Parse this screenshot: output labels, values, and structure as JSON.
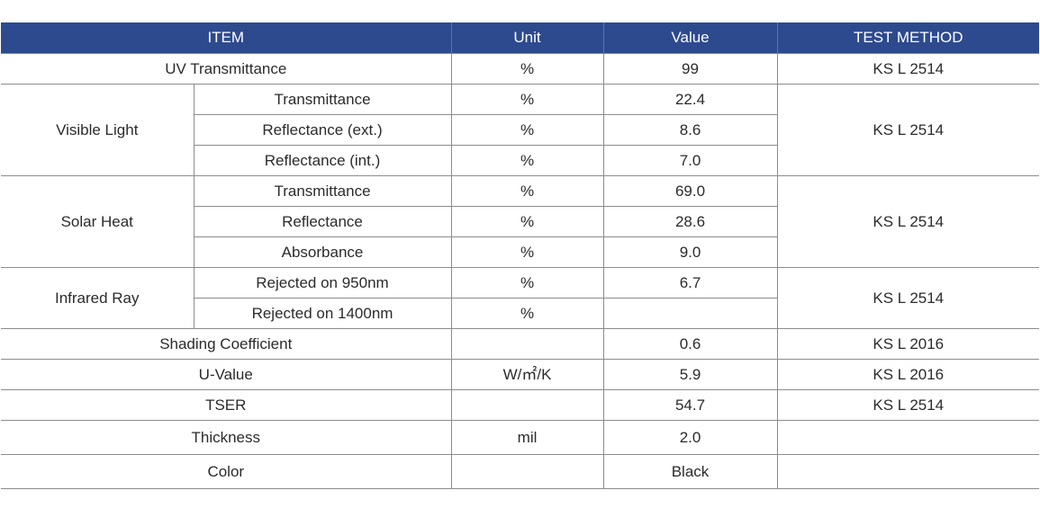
{
  "headers": {
    "item": "ITEM",
    "unit": "Unit",
    "value": "Value",
    "method": "TEST METHOD"
  },
  "uv": {
    "item": "UV Transmittance",
    "unit": "%",
    "value": "99",
    "method": "KS L 2514"
  },
  "visible_light": {
    "label": "Visible Light",
    "method": "KS L 2514",
    "rows": [
      {
        "sub": "Transmittance",
        "unit": "%",
        "value": "22.4"
      },
      {
        "sub": "Reflectance (ext.)",
        "unit": "%",
        "value": "8.6"
      },
      {
        "sub": "Reflectance (int.)",
        "unit": "%",
        "value": "7.0"
      }
    ]
  },
  "solar_heat": {
    "label": "Solar Heat",
    "method": "KS L 2514",
    "rows": [
      {
        "sub": "Transmittance",
        "unit": "%",
        "value": "69.0"
      },
      {
        "sub": "Reflectance",
        "unit": "%",
        "value": "28.6"
      },
      {
        "sub": "Absorbance",
        "unit": "%",
        "value": "9.0"
      }
    ]
  },
  "infrared": {
    "label": "Infrared Ray",
    "method": "KS L 2514",
    "rows": [
      {
        "sub": "Rejected on 950nm",
        "unit": "%",
        "value": "6.7"
      },
      {
        "sub": "Rejected on 1400nm",
        "unit": "%",
        "value": ""
      }
    ]
  },
  "shading": {
    "item": "Shading Coefficient",
    "unit": "",
    "value": "0.6",
    "method": "KS L 2016"
  },
  "u_value": {
    "item": "U-Value",
    "unit": "W/㎡/K",
    "value": "5.9",
    "method": "KS L 2016"
  },
  "tser": {
    "item": "TSER",
    "unit": "",
    "value": "54.7",
    "method": "KS L 2514"
  },
  "thickness": {
    "item": "Thickness",
    "unit": "mil",
    "value": "2.0",
    "method": ""
  },
  "color": {
    "item": "Color",
    "unit": "",
    "value": "Black",
    "method": ""
  }
}
